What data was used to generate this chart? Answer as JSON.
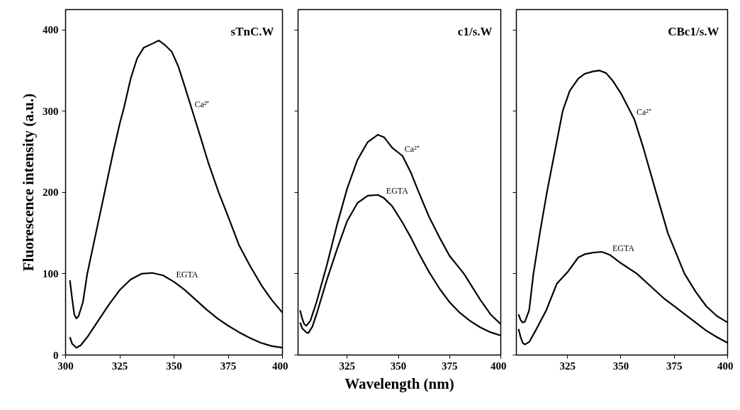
{
  "chart_data": [
    {
      "type": "line",
      "title": "sTnC.W",
      "ylabel": "Fluorescence intensity (a.u.)",
      "xlim": [
        300,
        400
      ],
      "ylim": [
        0,
        425
      ],
      "xticks": [
        300,
        325,
        350,
        375,
        400
      ],
      "yticks": [
        0,
        100,
        200,
        300,
        400
      ],
      "series": [
        {
          "color": "#000000",
          "x": [
            302,
            303,
            304,
            305,
            306,
            308,
            310,
            314,
            318,
            322,
            325,
            327,
            330,
            333,
            336,
            340,
            343,
            346,
            349,
            352,
            355,
            358.5,
            362,
            366,
            370.6,
            375,
            380,
            385,
            390.5,
            395,
            400
          ],
          "values": [
            92,
            70,
            50,
            45,
            48,
            65,
            100,
            150,
            200,
            250,
            285,
            305,
            340,
            365,
            378,
            383,
            387,
            381,
            373,
            355,
            330,
            300,
            270,
            235,
            200,
            170,
            135,
            110,
            85,
            68,
            52
          ]
        },
        {
          "color": "#000000",
          "x": [
            302,
            303,
            305,
            307,
            310,
            315,
            320,
            325,
            330,
            335,
            340,
            345,
            350,
            355,
            360,
            365,
            370,
            375,
            380,
            385,
            390,
            395,
            400
          ],
          "values": [
            22,
            14,
            9,
            12,
            22,
            42,
            62,
            80,
            93,
            100,
            101,
            98,
            90,
            80,
            68,
            56,
            45,
            36,
            28,
            21,
            15,
            11,
            9
          ]
        }
      ],
      "annotations": [
        {
          "text": "Ca²⁺",
          "x": 358.5,
          "y": 300
        },
        {
          "text": "EGTA",
          "x": 350,
          "y": 90
        }
      ]
    },
    {
      "type": "line",
      "title": "c1/s.W",
      "xlabel": "Wavelength (nm)",
      "xlim": [
        301,
        400
      ],
      "ylim": [
        0,
        425
      ],
      "xticks": [
        325,
        350,
        375,
        400
      ],
      "yticks": [
        0,
        100,
        200,
        300,
        400
      ],
      "tick_labels": "x",
      "series": [
        {
          "color": "#000000",
          "x": [
            302,
            303,
            304,
            305,
            307,
            310,
            315,
            320,
            325,
            330,
            335,
            340,
            343,
            347,
            352,
            356,
            360,
            365,
            370,
            375,
            382,
            385,
            390,
            395,
            400
          ],
          "values": [
            55,
            45,
            38,
            36,
            42,
            65,
            110,
            160,
            205,
            240,
            262,
            271,
            268,
            255,
            245,
            225,
            200,
            170,
            145,
            122,
            100,
            88,
            68,
            50,
            38
          ]
        },
        {
          "color": "#000000",
          "x": [
            302,
            303,
            305,
            306,
            308,
            310,
            315,
            320,
            325,
            330,
            335,
            340,
            343,
            347,
            352,
            356,
            360,
            365,
            370,
            375,
            380,
            385,
            390,
            395,
            400
          ],
          "values": [
            40,
            33,
            28,
            27,
            35,
            50,
            92,
            130,
            165,
            187,
            196,
            197,
            193,
            183,
            163,
            145,
            125,
            102,
            82,
            65,
            52,
            42,
            34,
            28,
            24
          ]
        }
      ],
      "annotations": [
        {
          "text": "Ca²⁺",
          "x": 352,
          "y": 245
        },
        {
          "text": "EGTA",
          "x": 343,
          "y": 193
        }
      ]
    },
    {
      "type": "line",
      "title": "CBc1/s.W",
      "xlim": [
        301,
        400
      ],
      "ylim": [
        0,
        425
      ],
      "xticks": [
        325,
        350,
        375,
        400
      ],
      "yticks": [
        0,
        100,
        200,
        300,
        400
      ],
      "tick_labels": "x",
      "series": [
        {
          "color": "#000000",
          "x": [
            302,
            303,
            304,
            305,
            307,
            309,
            312,
            315.3,
            319,
            322.7,
            326,
            330,
            333,
            337,
            340,
            343,
            346,
            350,
            356.3,
            360.5,
            366.5,
            372,
            379.8,
            385,
            390,
            395,
            400
          ],
          "values": [
            50,
            43,
            40,
            41,
            55,
            100,
            150,
            200,
            250,
            300,
            325,
            340,
            346,
            349,
            350,
            347,
            338,
            322,
            290,
            255,
            200,
            150,
            100,
            78,
            60,
            48,
            40
          ]
        },
        {
          "color": "#000000",
          "x": [
            302,
            303,
            304,
            305,
            307,
            310,
            315,
            320,
            325,
            330,
            333,
            337,
            341,
            345,
            350,
            357.5,
            365,
            370,
            375,
            380,
            385,
            390,
            395,
            400
          ],
          "values": [
            32,
            22,
            15,
            13,
            16,
            30,
            55,
            88,
            102,
            120,
            124,
            126,
            127,
            123,
            113,
            100,
            82,
            70,
            60,
            50,
            40,
            30,
            22,
            15
          ]
        }
      ],
      "annotations": [
        {
          "text": "Ca²⁺",
          "x": 356.3,
          "y": 290
        },
        {
          "text": "EGTA",
          "x": 345,
          "y": 123
        }
      ]
    }
  ]
}
